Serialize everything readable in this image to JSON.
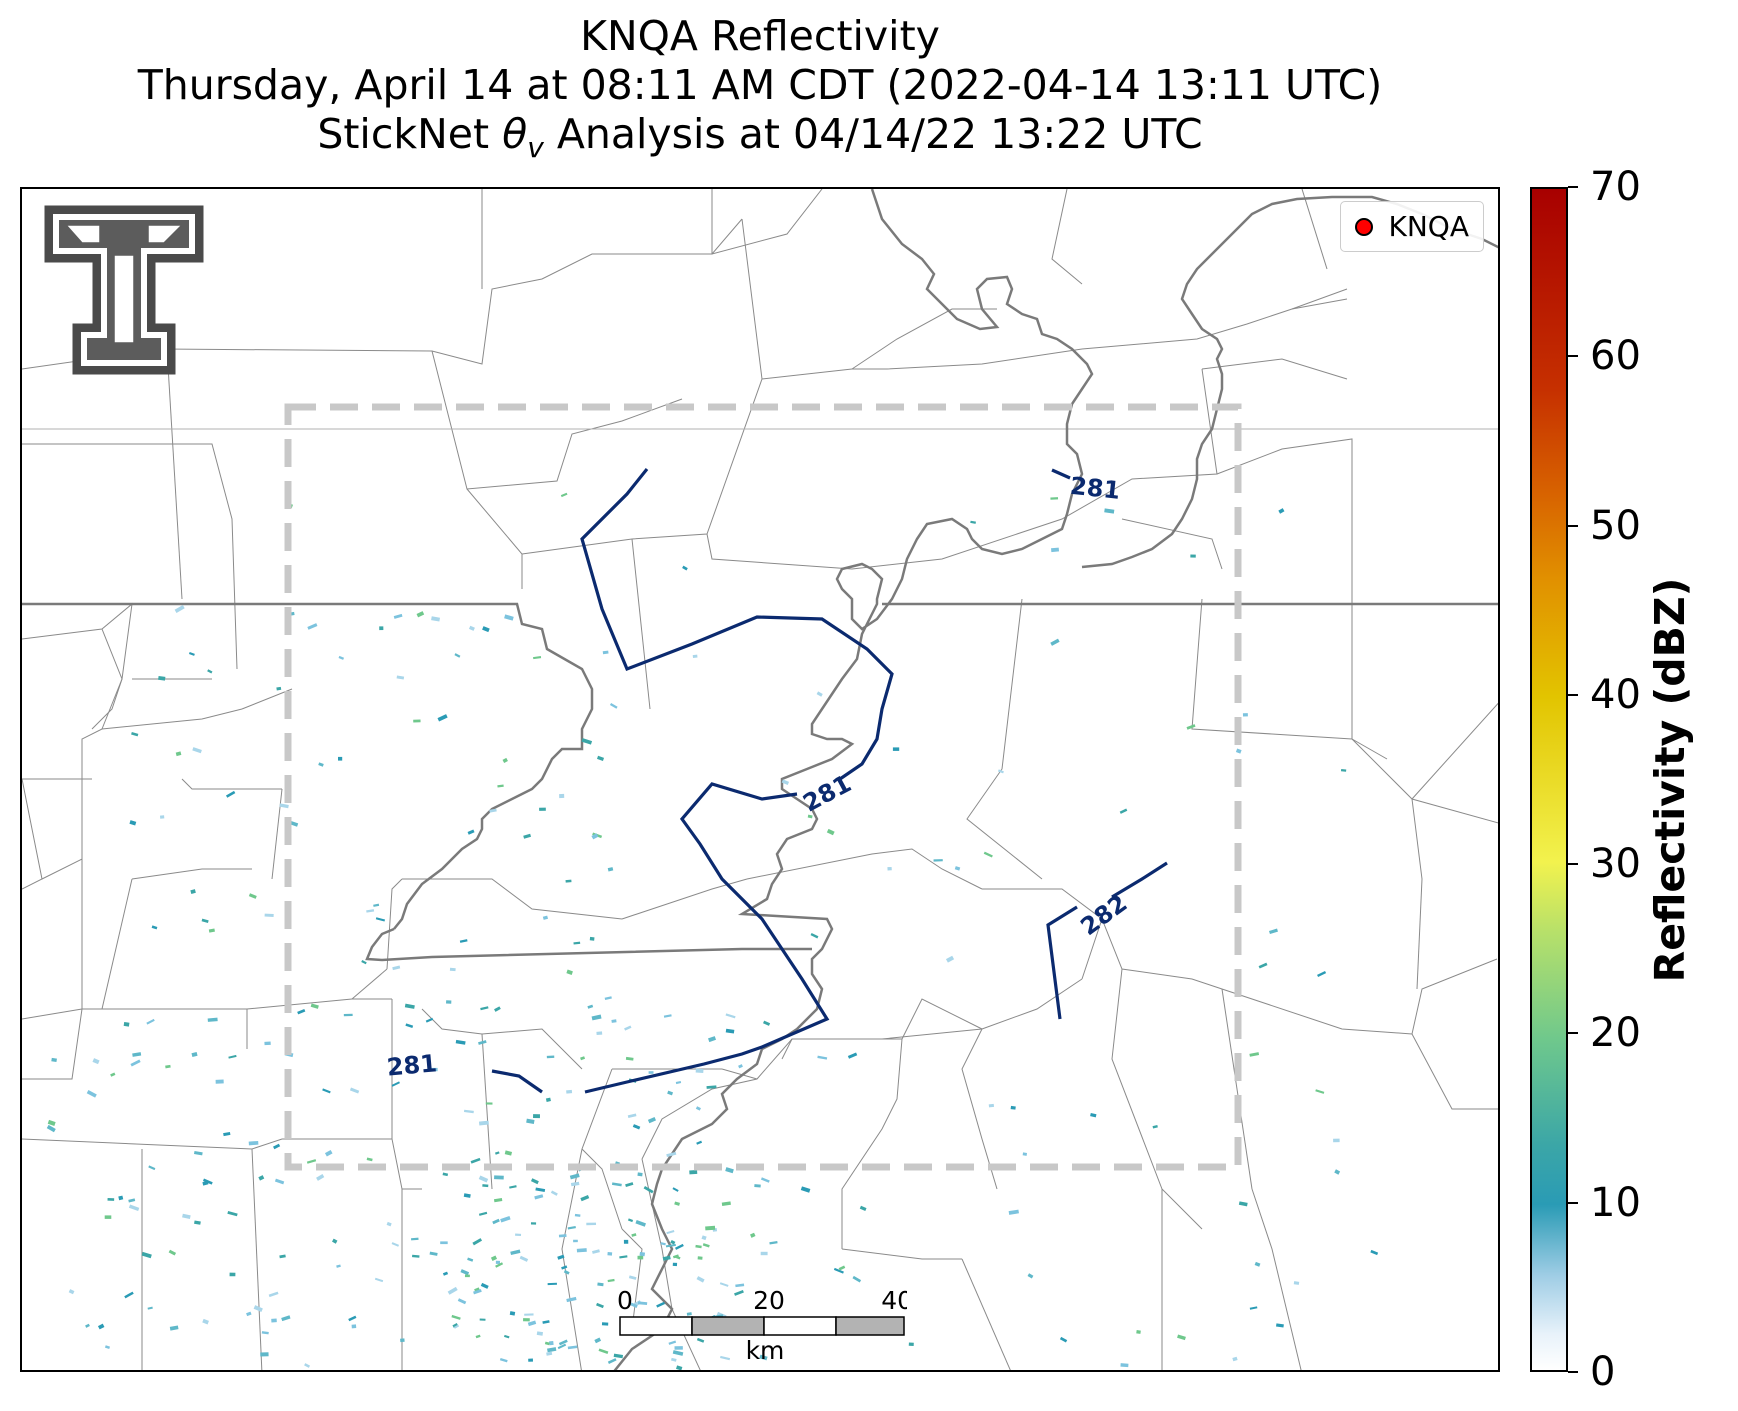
{
  "title": {
    "line1": "KNQA Reflectivity",
    "line2": "Thursday, April 14 at 08:11 AM CDT (2022-04-14 13:11 UTC)",
    "line3_prefix": "StickNet ",
    "line3_symbol": "θ",
    "line3_subscript": "v",
    "line3_suffix": " Analysis at 04/14/22 13:22 UTC"
  },
  "legend": {
    "label": "KNQA",
    "marker_color": "#ff0000"
  },
  "contour_labels": [
    "281",
    "281",
    "281",
    "282"
  ],
  "contour_color": "#0b2a6f",
  "scalebar": {
    "ticks": [
      "0",
      "20",
      "40"
    ],
    "unit": "km"
  },
  "colorbar": {
    "title": "Reflectivity (dBZ)",
    "min": 0,
    "max": 70,
    "ticks": [
      "0",
      "10",
      "20",
      "30",
      "40",
      "50",
      "60",
      "70"
    ],
    "colors": [
      "#ffffff",
      "#2a9bb5",
      "#6fc88c",
      "#f2f24e",
      "#e2c400",
      "#e19000",
      "#c63000",
      "#a80000"
    ]
  },
  "logo": {
    "name": "texas-tech-double-t"
  }
}
